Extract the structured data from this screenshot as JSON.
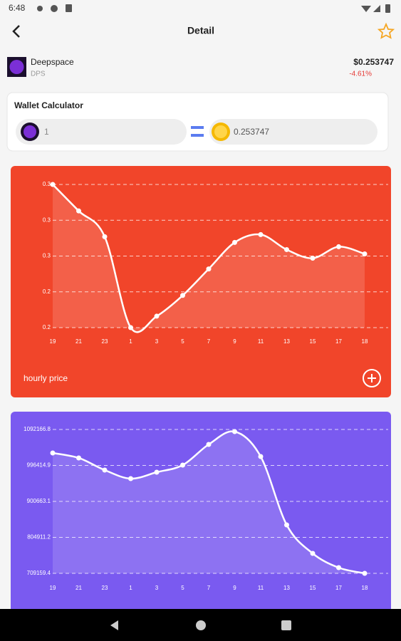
{
  "status_bar": {
    "time": "6:48"
  },
  "header": {
    "title": "Detail"
  },
  "coin": {
    "name": "Deepspace",
    "symbol": "DPS",
    "price": "$0.253747",
    "change": "-4.61%"
  },
  "wallet_calculator": {
    "title": "Wallet Calculator",
    "amount": "1",
    "value": "0.253747"
  },
  "chart_data": [
    {
      "type": "line",
      "caption": "hourly price",
      "color": "#f1452a",
      "categories": [
        "19",
        "21",
        "23",
        "1",
        "3",
        "5",
        "7",
        "9",
        "11",
        "13",
        "15",
        "17",
        "18"
      ],
      "values": [
        0.27,
        0.2626,
        0.2554,
        0.23,
        0.2332,
        0.239,
        0.2464,
        0.2538,
        0.256,
        0.2518,
        0.2494,
        0.2526,
        0.2506
      ],
      "ylim": [
        0.23,
        0.27
      ],
      "yticks": [
        {
          "value": 0.27,
          "label": "0.3"
        },
        {
          "value": 0.26,
          "label": "0.3"
        },
        {
          "value": 0.25,
          "label": "0.3"
        },
        {
          "value": 0.24,
          "label": "0.2"
        },
        {
          "value": 0.23,
          "label": "0.2"
        }
      ],
      "grid": true
    },
    {
      "type": "line",
      "color": "#7a5af0",
      "categories": [
        "19",
        "21",
        "23",
        "1",
        "3",
        "5",
        "7",
        "9",
        "11",
        "13",
        "15",
        "17",
        "18"
      ],
      "values": [
        1029600,
        1016330,
        984100,
        961350,
        978400,
        997360,
        1052340,
        1086480,
        1020120,
        838100,
        762260,
        724340,
        709159.4
      ],
      "ylim": [
        709159.4,
        1092166.8
      ],
      "yticks": [
        1092166.8,
        996414.9,
        900663.1,
        804911.2,
        709159.4
      ],
      "grid": true
    }
  ]
}
